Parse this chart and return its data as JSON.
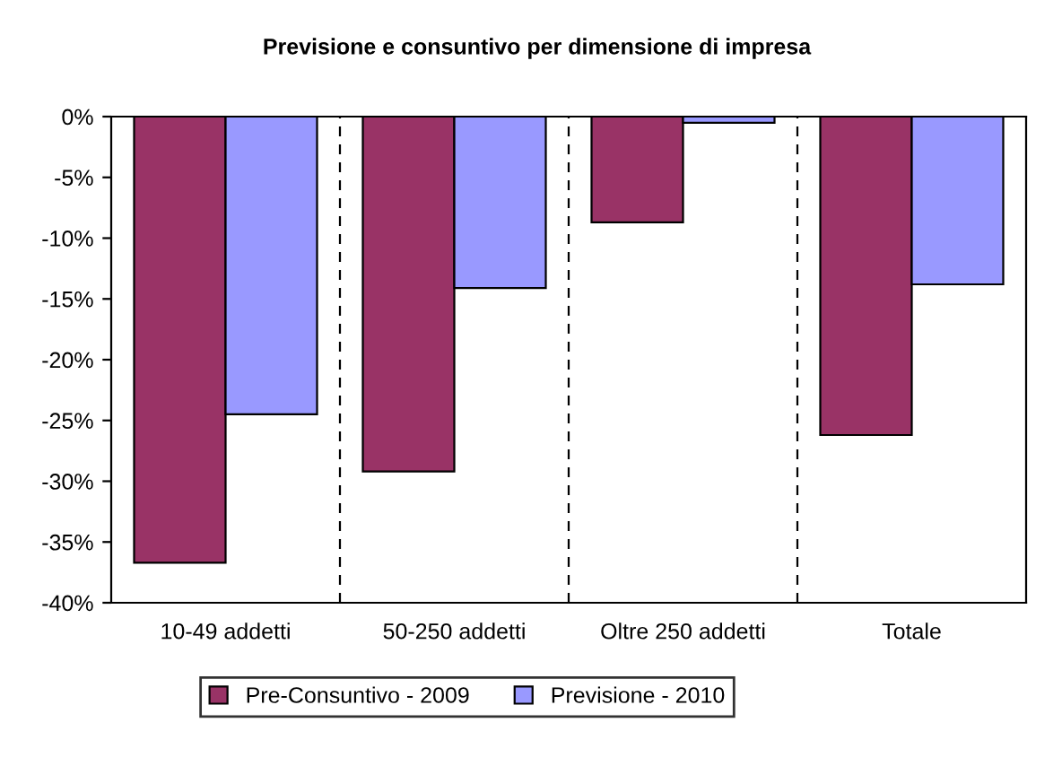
{
  "chart_data": {
    "type": "bar",
    "title": "Previsione e consuntivo per dimensione di impresa",
    "categories": [
      "10-49 addetti",
      "50-250 addetti",
      "Oltre 250 addetti",
      "Totale"
    ],
    "series": [
      {
        "name": "Pre-Consuntivo - 2009",
        "color": "#993366",
        "values": [
          -36.7,
          -29.2,
          -8.7,
          -26.2
        ]
      },
      {
        "name": "Previsione - 2010",
        "color": "#9999ff",
        "values": [
          -24.5,
          -14.1,
          -0.5,
          -13.8
        ]
      }
    ],
    "ylim": [
      -40,
      0
    ],
    "yticks": [
      {
        "value": 0,
        "label": "0%"
      },
      {
        "value": -5,
        "label": "-5%"
      },
      {
        "value": -10,
        "label": "-10%"
      },
      {
        "value": -15,
        "label": "-15%"
      },
      {
        "value": -20,
        "label": "-20%"
      },
      {
        "value": -25,
        "label": "-25%"
      },
      {
        "value": -30,
        "label": "-30%"
      },
      {
        "value": -35,
        "label": "-35%"
      },
      {
        "value": -40,
        "label": "-40%"
      }
    ],
    "grid": "x",
    "legend": "bottom"
  }
}
